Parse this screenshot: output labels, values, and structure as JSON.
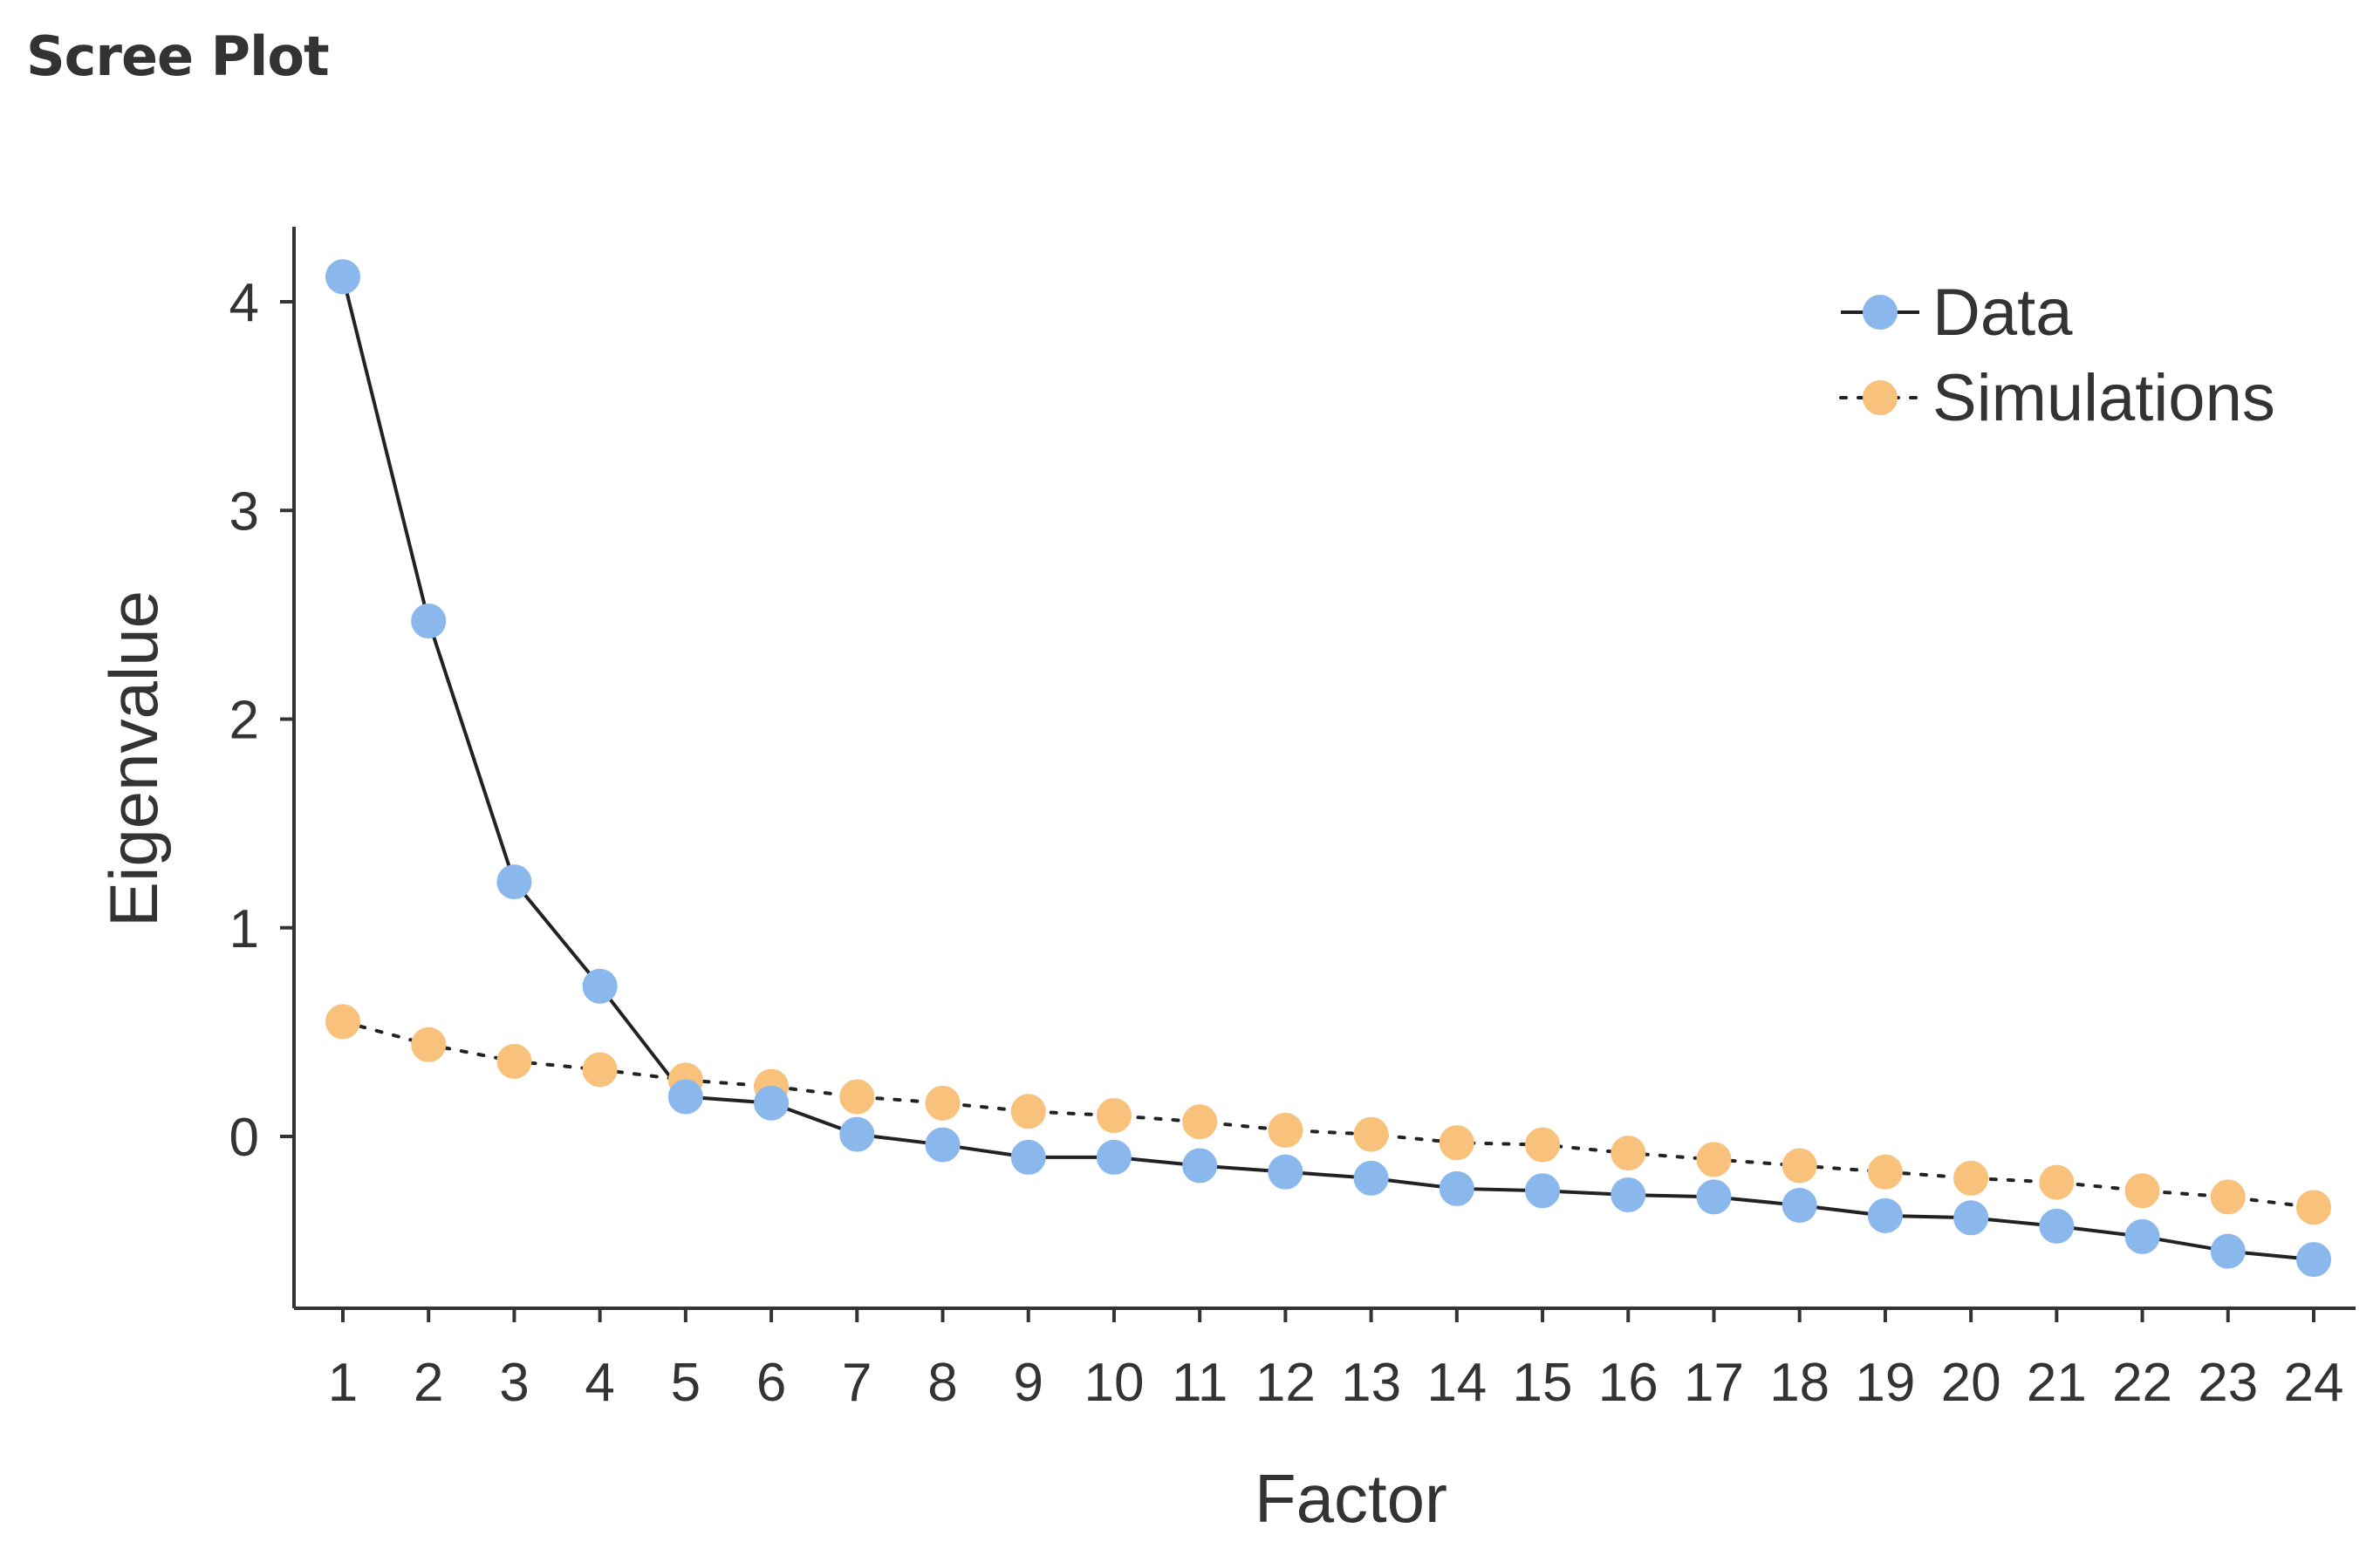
{
  "page": {
    "title": "Scree Plot"
  },
  "chart_data": {
    "type": "line",
    "title": "Scree Plot",
    "xlabel": "Factor",
    "ylabel": "Eigenvalue",
    "x": [
      1,
      2,
      3,
      4,
      5,
      6,
      7,
      8,
      9,
      10,
      11,
      12,
      13,
      14,
      15,
      16,
      17,
      18,
      19,
      20,
      21,
      22,
      23,
      24
    ],
    "xlim": [
      0.4,
      24.6
    ],
    "ylim": [
      -0.84,
      4.3
    ],
    "yticks": [
      0,
      1,
      2,
      3,
      4
    ],
    "legend_position": "top-right",
    "series": [
      {
        "name": "Data",
        "color": "#8ab8ec",
        "line_color": "#222222",
        "line_style": "solid",
        "values": [
          4.12,
          2.47,
          1.22,
          0.72,
          0.19,
          0.16,
          0.01,
          -0.04,
          -0.1,
          -0.1,
          -0.14,
          -0.17,
          -0.2,
          -0.25,
          -0.26,
          -0.28,
          -0.29,
          -0.33,
          -0.38,
          -0.39,
          -0.43,
          -0.48,
          -0.55,
          -0.59
        ]
      },
      {
        "name": "Simulations",
        "color": "#f8c27c",
        "line_color": "#222222",
        "line_style": "dotted",
        "values": [
          0.55,
          0.44,
          0.36,
          0.32,
          0.27,
          0.24,
          0.19,
          0.16,
          0.12,
          0.1,
          0.07,
          0.03,
          0.01,
          -0.03,
          -0.04,
          -0.08,
          -0.11,
          -0.14,
          -0.17,
          -0.2,
          -0.22,
          -0.26,
          -0.29,
          -0.34
        ]
      }
    ]
  }
}
